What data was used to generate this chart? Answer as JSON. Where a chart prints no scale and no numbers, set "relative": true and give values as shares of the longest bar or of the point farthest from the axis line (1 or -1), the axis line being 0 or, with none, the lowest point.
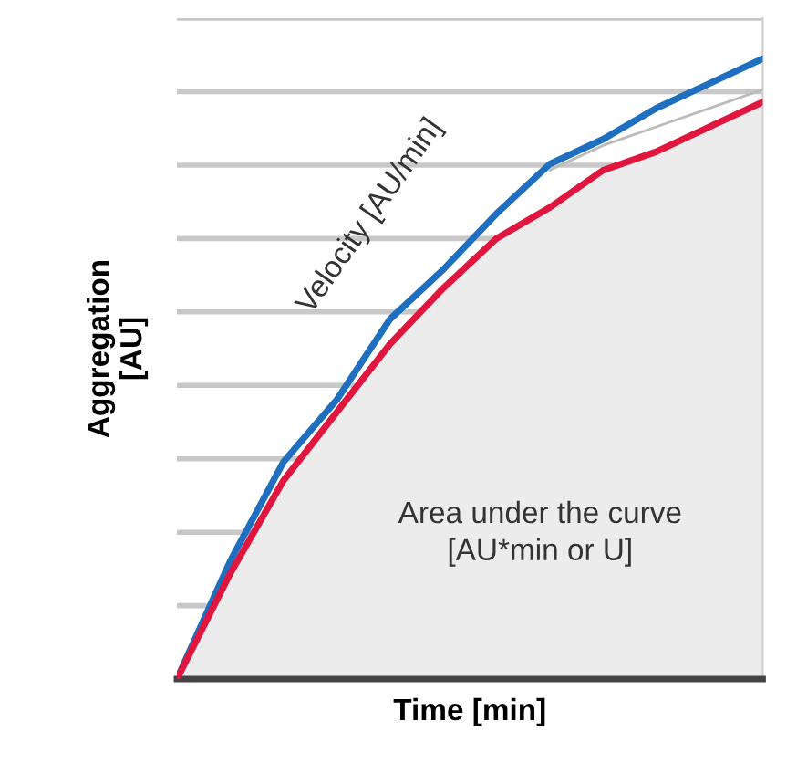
{
  "chart_data": {
    "type": "line",
    "relative": true,
    "xlabel": "Time [min]",
    "ylabel": "Aggregation\n[AU]",
    "categories": [
      null,
      null,
      null,
      null,
      null,
      null,
      null,
      null,
      null,
      null,
      null,
      null
    ],
    "series": [
      {
        "color": "#1f6fc0",
        "values": [
          0,
          0.19,
          0.35,
          0.45,
          0.58,
          0.66,
          0.75,
          0.83,
          0.87,
          0.92,
          0.96,
          1.0
        ]
      },
      {
        "color": "#bbbbbb",
        "values": [
          null,
          null,
          null,
          null,
          null,
          null,
          null,
          0.82,
          0.86,
          0.89,
          0.92,
          0.95
        ]
      },
      {
        "type": "area",
        "color": "#e0163f",
        "values": [
          0,
          0.17,
          0.32,
          0.43,
          0.54,
          0.63,
          0.71,
          0.76,
          0.82,
          0.85,
          0.89,
          0.93
        ]
      }
    ],
    "annotations": [
      "Velocity [AU/min]",
      "Area under the curve\n[AU*min or U]"
    ],
    "grid": "y"
  }
}
